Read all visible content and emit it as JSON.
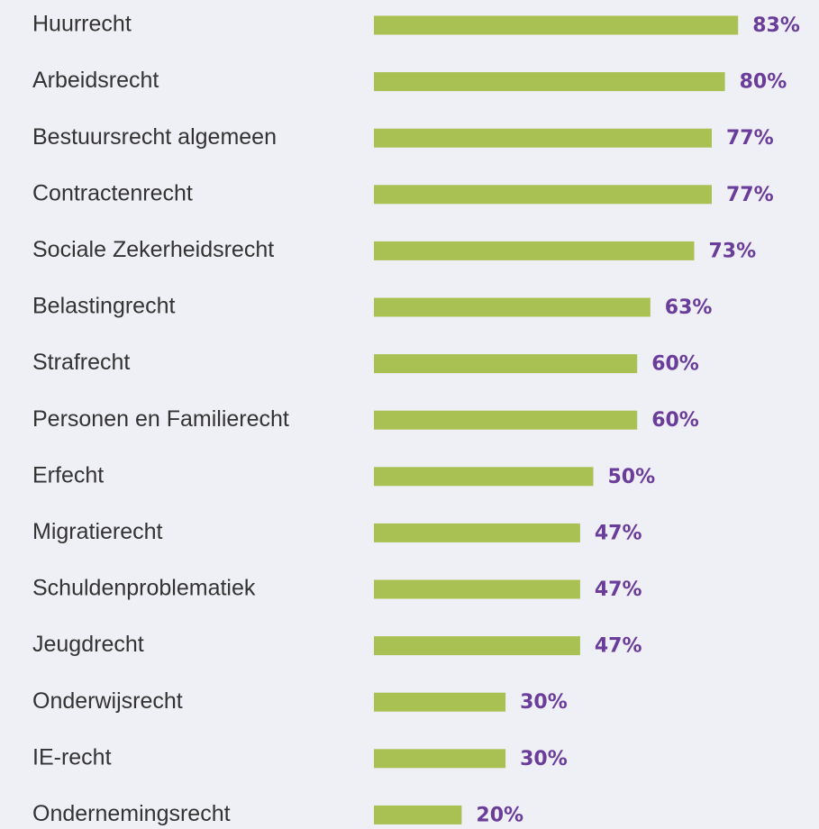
{
  "chart_data": {
    "type": "bar",
    "orientation": "horizontal",
    "categories": [
      "Huurrecht",
      "Arbeidsrecht",
      "Bestuursrecht algemeen",
      "Contractenrecht",
      "Sociale Zekerheidsrecht",
      "Belastingrecht",
      "Strafrecht",
      "Personen en Familierecht",
      "Erfecht",
      "Migratierecht",
      "Schuldenproblematiek",
      "Jeugdrecht",
      "Onderwijsrecht",
      "IE-recht",
      "Ondernemingsrecht"
    ],
    "values": [
      83,
      80,
      77,
      77,
      73,
      63,
      60,
      60,
      50,
      47,
      47,
      47,
      30,
      30,
      20
    ],
    "value_labels": [
      "83%",
      "80%",
      "77%",
      "77%",
      "73%",
      "63%",
      "60%",
      "60%",
      "50%",
      "47%",
      "47%",
      "47%",
      "30%",
      "30%",
      "20%"
    ],
    "color": "#a9c152",
    "label_color": "#6a3d9a",
    "xlim": [
      0,
      100
    ],
    "grid": false
  }
}
